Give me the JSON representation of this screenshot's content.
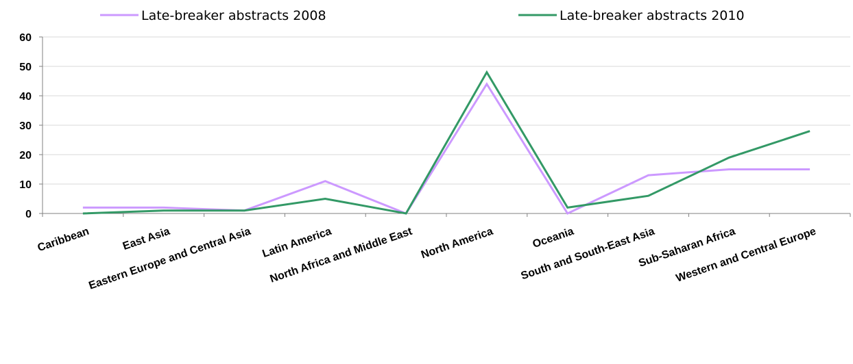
{
  "chart_data": {
    "type": "line",
    "categories": [
      "Caribbean",
      "East Asia",
      "Eastern Europe and Central Asia",
      "Latin America",
      "North Africa and Middle East",
      "North America",
      "Oceania",
      "South and South-East Asia",
      "Sub-Saharan Africa",
      "Western and Central Europe"
    ],
    "series": [
      {
        "name": "Late-breaker abstracts 2008",
        "color": "#cc99ff",
        "values": [
          2,
          2,
          1,
          11,
          0,
          44,
          0,
          13,
          15,
          15
        ]
      },
      {
        "name": "Late-breaker abstracts 2010",
        "color": "#339966",
        "values": [
          0,
          1,
          1,
          5,
          0,
          48,
          2,
          6,
          19,
          28
        ]
      }
    ],
    "ylim": [
      0,
      60
    ],
    "yticks": [
      0,
      10,
      20,
      30,
      40,
      50,
      60
    ],
    "grid": true,
    "legend_position": "top"
  }
}
